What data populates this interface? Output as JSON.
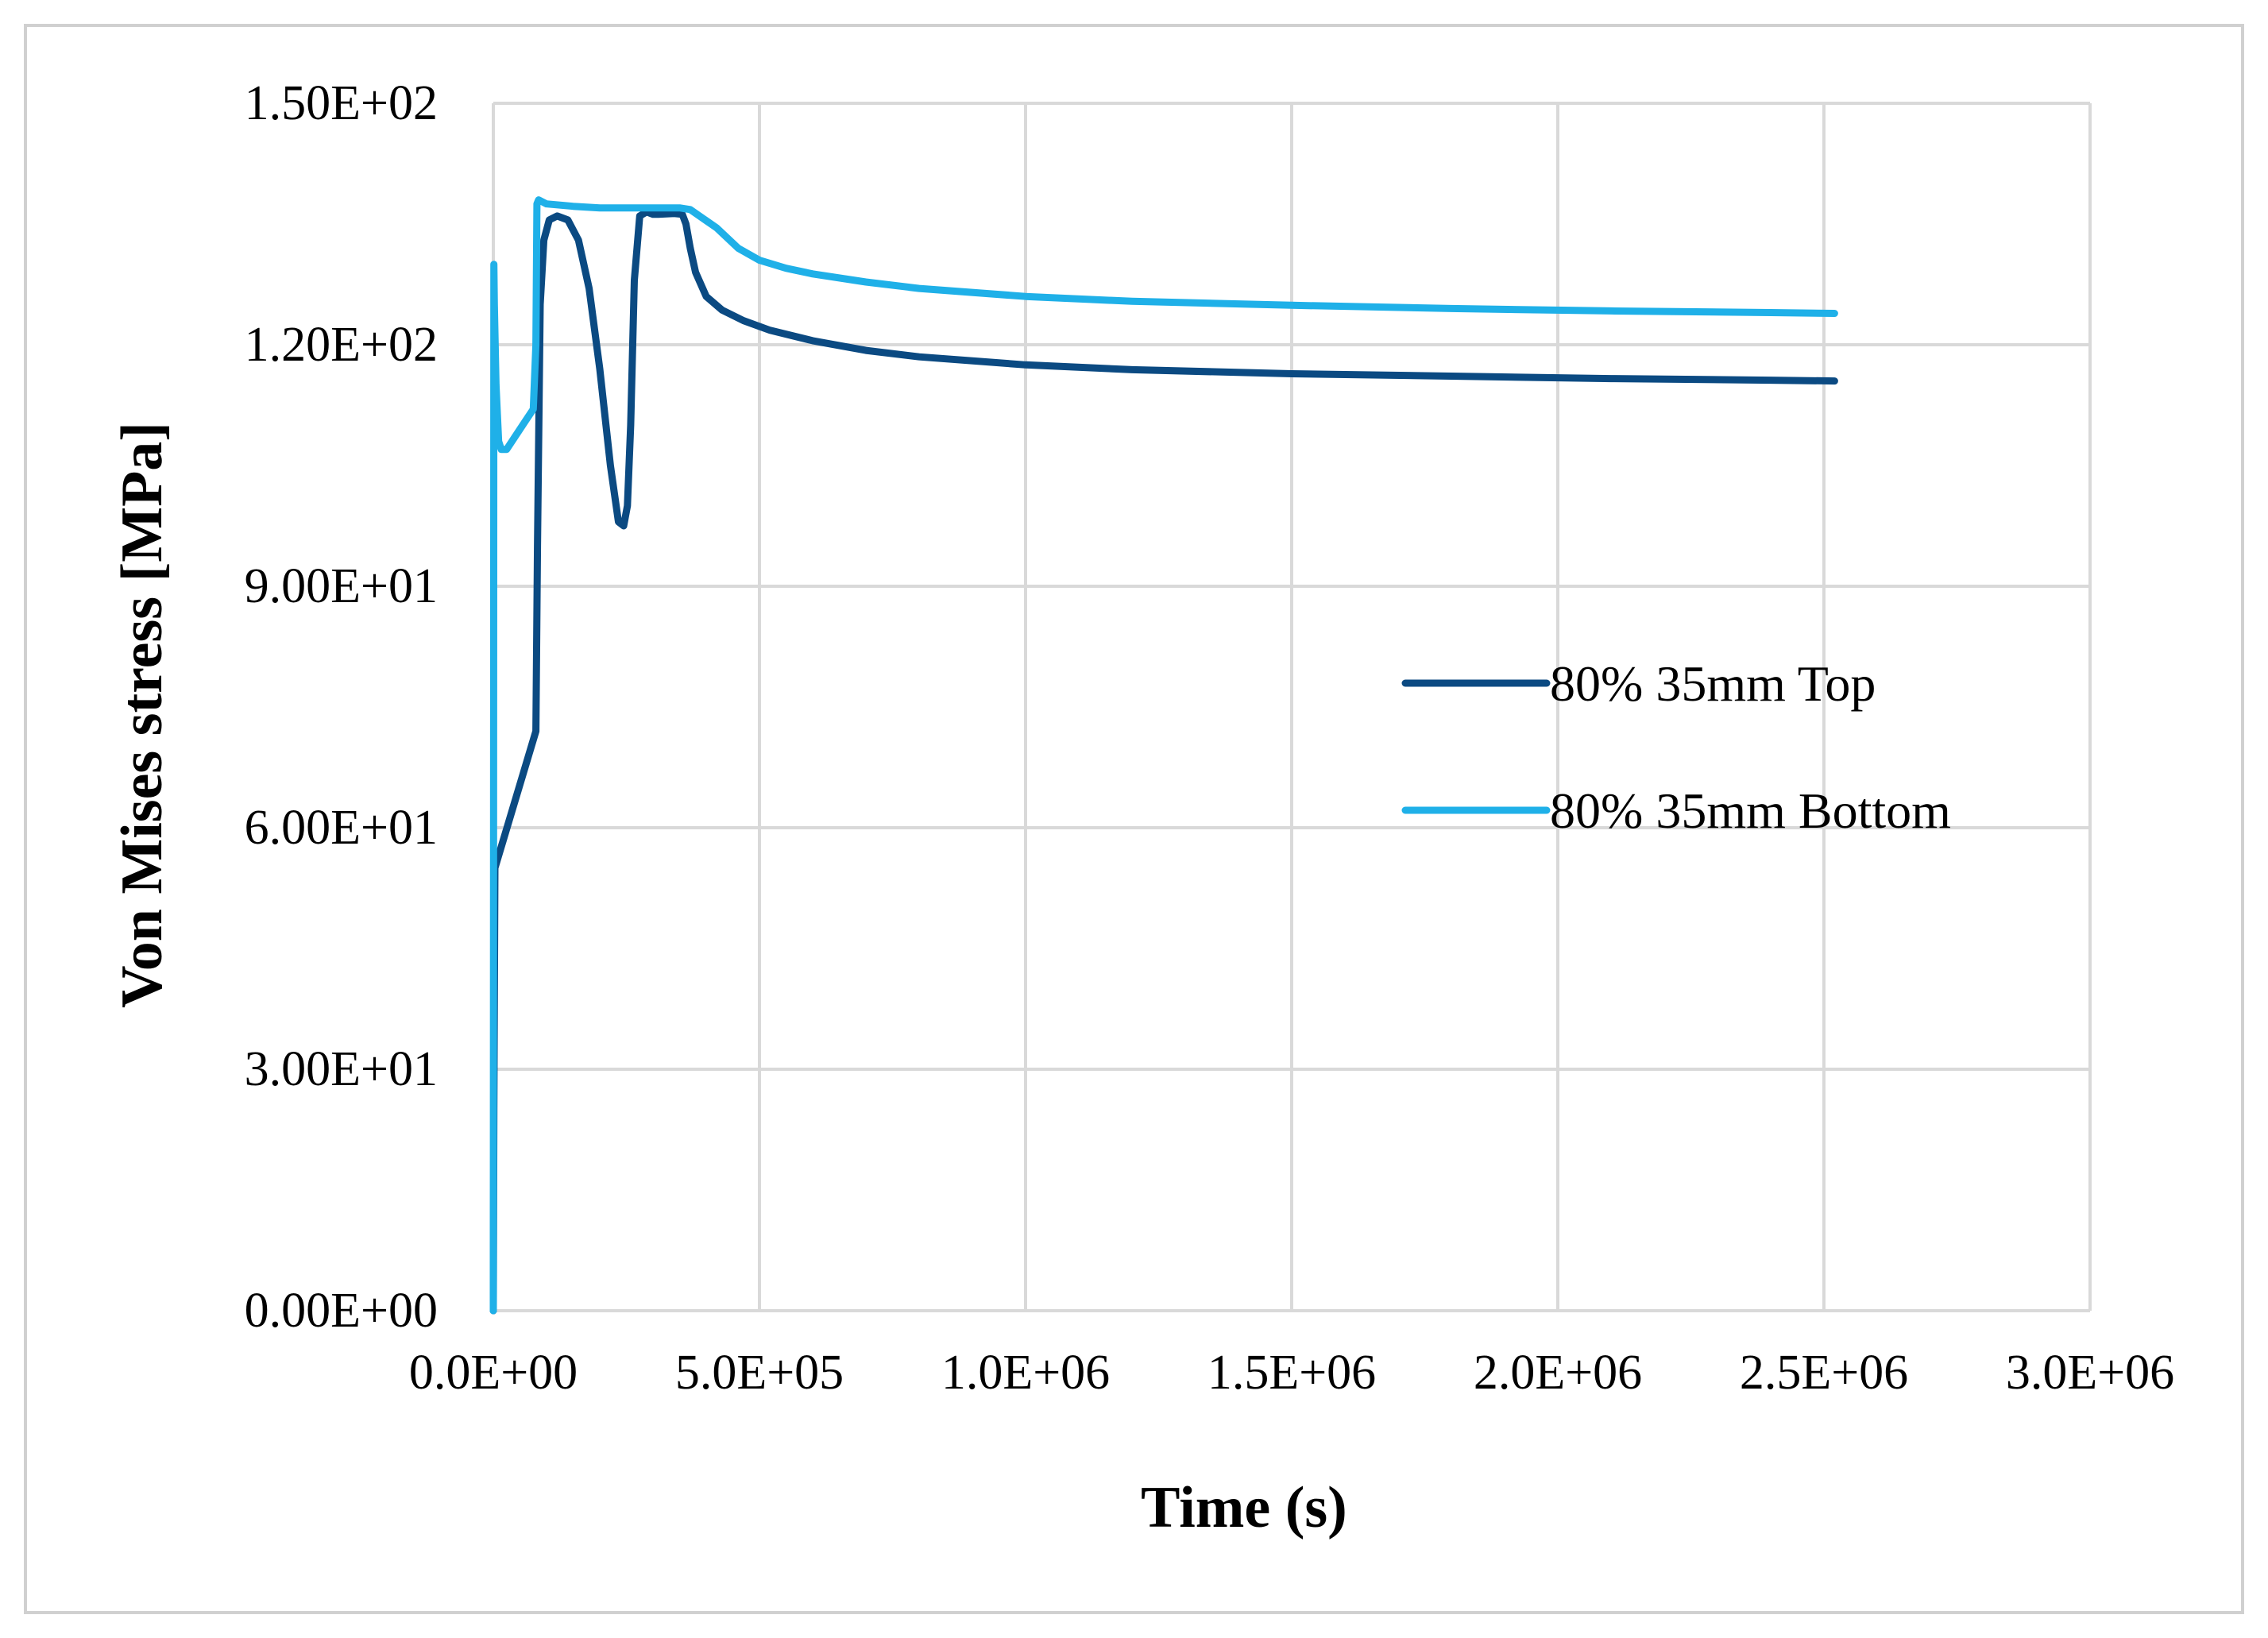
{
  "chart_data": {
    "type": "line",
    "title": "",
    "xlabel": "Time (s)",
    "ylabel": "Von Mises stress [MPa]",
    "xlim": [
      0,
      3000000
    ],
    "ylim": [
      0,
      150
    ],
    "x_ticks": [
      0,
      500000,
      1000000,
      1500000,
      2000000,
      2500000,
      3000000
    ],
    "x_tick_labels": [
      "0.0E+00",
      "5.0E+05",
      "1.0E+06",
      "1.5E+06",
      "2.0E+06",
      "2.5E+06",
      "3.0E+06"
    ],
    "y_ticks": [
      0,
      30,
      60,
      90,
      120,
      150
    ],
    "y_tick_labels": [
      "0.00E+00",
      "3.00E+01",
      "6.00E+01",
      "9.00E+01",
      "1.20E+02",
      "1.50E+02"
    ],
    "grid": true,
    "legend_position": "right-middle",
    "series": [
      {
        "name": "80% 35mm Top",
        "color": "#0b4a82",
        "x": [
          0,
          1000,
          3000,
          80000,
          83000,
          88000,
          95000,
          105000,
          120000,
          140000,
          160000,
          180000,
          200000,
          220000,
          235000,
          245000,
          252000,
          258000,
          265000,
          275000,
          288000,
          300000,
          310000,
          340000,
          355000,
          362000,
          370000,
          380000,
          400000,
          430000,
          470000,
          520000,
          600000,
          700000,
          800000,
          1000000,
          1200000,
          1500000,
          1800000,
          2100000,
          2400000,
          2520000
        ],
        "y": [
          0,
          25,
          55,
          72,
          95,
          125,
          133,
          135.5,
          136,
          135.5,
          133,
          127,
          117,
          105,
          98,
          97.5,
          100,
          110,
          128,
          136,
          136.5,
          136.2,
          136.2,
          136.3,
          136.2,
          135,
          132,
          129,
          126,
          124.3,
          123,
          121.8,
          120.5,
          119.3,
          118.5,
          117.5,
          116.9,
          116.4,
          116.1,
          115.8,
          115.6,
          115.5
        ]
      },
      {
        "name": "80% 35mm Bottom",
        "color": "#1fb0e8",
        "x": [
          0,
          500,
          1000,
          2000,
          5000,
          10000,
          15000,
          25000,
          40000,
          60000,
          75000,
          80000,
          82000,
          85000,
          100000,
          150000,
          200000,
          250000,
          300000,
          350000,
          370000,
          420000,
          460000,
          500000,
          550000,
          600000,
          700000,
          800000,
          1000000,
          1200000,
          1500000,
          1800000,
          2100000,
          2400000,
          2520000
        ],
        "y": [
          0,
          55,
          130,
          125,
          115,
          108,
          107,
          107,
          108.5,
          110.5,
          112,
          120,
          137.5,
          138,
          137.5,
          137.2,
          137,
          137,
          137,
          137,
          136.8,
          134.5,
          132,
          130.5,
          129.5,
          128.8,
          127.8,
          127,
          126,
          125.4,
          124.9,
          124.5,
          124.2,
          124,
          123.9
        ]
      }
    ]
  }
}
